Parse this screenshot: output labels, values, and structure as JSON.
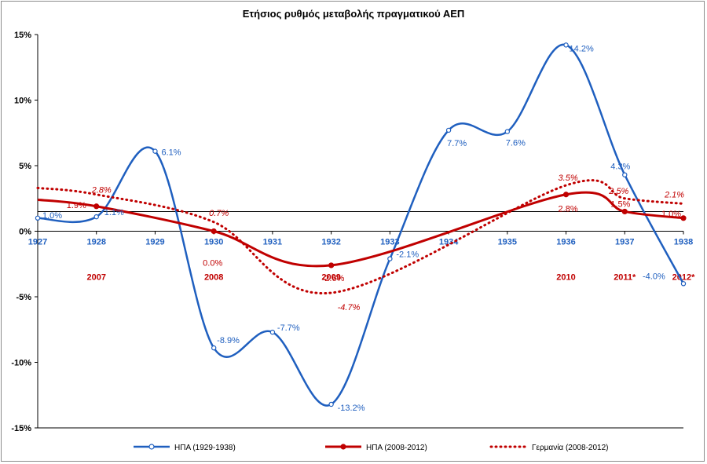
{
  "chart_data": {
    "type": "line",
    "title": "Ετήσιος ρυθμός μεταβολής πραγματικού ΑΕΠ",
    "ylim": [
      -15,
      15
    ],
    "y_ticks": [
      "15%",
      "10%",
      "5%",
      "0%",
      "-5%",
      "-10%",
      "-15%"
    ],
    "y_tick_values": [
      15,
      10,
      5,
      0,
      -5,
      -10,
      -15
    ],
    "x_ticks": [
      "1927",
      "1928",
      "1929",
      "1930",
      "1931",
      "1932",
      "1933",
      "1934",
      "1935",
      "1936",
      "1937",
      "1938"
    ],
    "secondary_x_ticks": [
      {
        "label": "2007",
        "at": 1928
      },
      {
        "label": "2008",
        "at": 1930
      },
      {
        "label": "2009",
        "at": 1932
      },
      {
        "label": "2010",
        "at": 1936
      },
      {
        "label": "2011*",
        "at": 1937
      },
      {
        "label": "2012*",
        "at": 1938
      }
    ],
    "series": [
      {
        "name": "ΗΠΑ (1929-1938)",
        "color": "#1f5fbf",
        "style": "solid-marker",
        "x": [
          1927,
          1928,
          1929,
          1930,
          1931,
          1932,
          1933,
          1934,
          1935,
          1936,
          1937,
          1938
        ],
        "values": [
          1.0,
          1.1,
          6.1,
          -8.9,
          -7.7,
          -13.2,
          -2.1,
          7.7,
          7.6,
          14.2,
          4.3,
          -4.0
        ],
        "labels": [
          "1.0%",
          "1.1%",
          "6.1%",
          "-8.9%",
          "-7.7%",
          "-13.2%",
          "-2.1%",
          "7.7%",
          "7.6%",
          "14.2%",
          "4.3%",
          "-4.0%"
        ]
      },
      {
        "name": "ΗΠΑ (2008-2012)",
        "color": "#c00000",
        "style": "thick-marker",
        "x": [
          1927,
          1928,
          1930,
          1932,
          1936,
          1937,
          1938
        ],
        "values": [
          2.4,
          1.9,
          0.0,
          -2.6,
          2.8,
          1.5,
          1.0
        ],
        "labels": [
          "",
          "1.9%",
          "0.0%",
          "-2.6%",
          "2.8%",
          "1.5%",
          "1.0%"
        ]
      },
      {
        "name": "Γερμανία (2008-2012)",
        "color": "#c00000",
        "style": "dotted",
        "x": [
          1927,
          1928,
          1930,
          1932,
          1936,
          1937,
          1938
        ],
        "values": [
          3.3,
          2.8,
          0.7,
          -4.7,
          3.5,
          2.5,
          2.1
        ],
        "labels": [
          "",
          "2.8%",
          "0.7%",
          "-4.7%",
          "3.5%",
          "2.5%",
          "2.1%"
        ]
      }
    ],
    "reference_line": {
      "value": 1.5
    },
    "legend_position": "bottom"
  }
}
